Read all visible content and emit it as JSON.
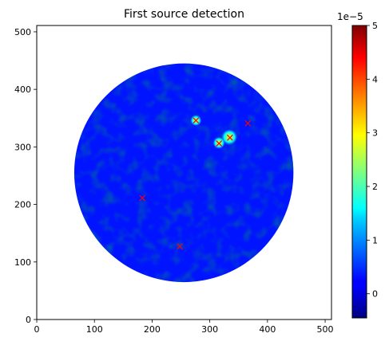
{
  "chart_data": {
    "type": "heatmap",
    "title": "First source detection",
    "xlabel": "",
    "ylabel": "",
    "xlim": [
      0,
      511
    ],
    "ylim": [
      0,
      511
    ],
    "x_ticks": [
      0,
      100,
      200,
      300,
      400,
      500
    ],
    "y_ticks": [
      0,
      100,
      200,
      300,
      400,
      500
    ],
    "image": {
      "shape": "disk",
      "center": [
        255,
        255
      ],
      "radius": 190,
      "background_value": 0.0
    },
    "colormap": "jet",
    "colorbar": {
      "vmin": -0.45,
      "vmax": 5.0,
      "ticks": [
        0,
        1,
        2,
        3,
        4,
        5
      ],
      "offset_label": "1e−5"
    },
    "bright_sources": [
      {
        "x": 334,
        "y": 317,
        "value": 1.0
      },
      {
        "x": 316,
        "y": 307,
        "value": 0.6
      },
      {
        "x": 276,
        "y": 346,
        "value": 0.5
      }
    ],
    "detections": [
      {
        "x": 276,
        "y": 346
      },
      {
        "x": 366,
        "y": 341
      },
      {
        "x": 316,
        "y": 306
      },
      {
        "x": 335,
        "y": 316
      },
      {
        "x": 183,
        "y": 211
      },
      {
        "x": 248,
        "y": 127
      }
    ],
    "marker_color": "#ff0000"
  }
}
